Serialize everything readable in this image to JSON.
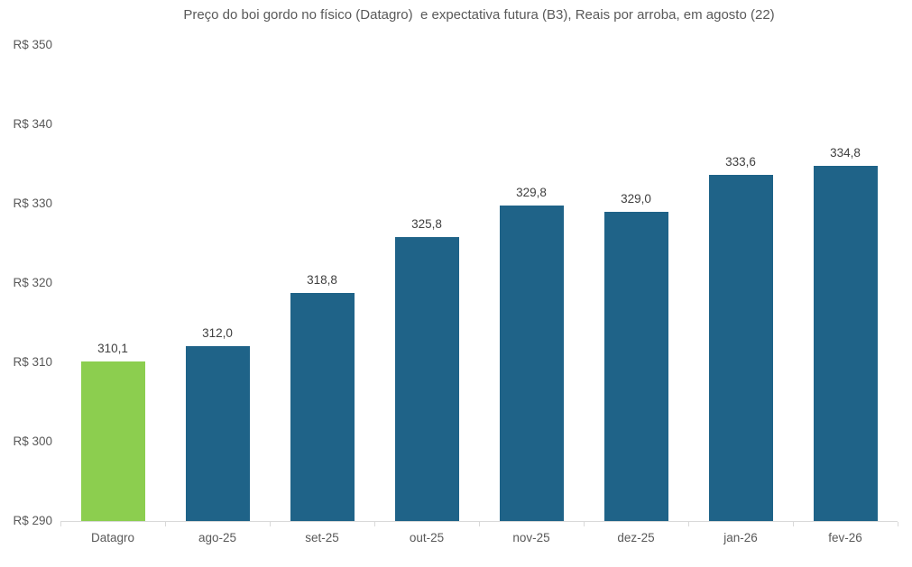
{
  "chart_data": {
    "type": "bar",
    "title": "Preço do boi gordo no físico (Datagro)  e expectativa futura (B3), Reais por arroba, em agosto (22)",
    "categories": [
      "Datagro",
      "ago-25",
      "set-25",
      "out-25",
      "nov-25",
      "dez-25",
      "jan-26",
      "fev-26"
    ],
    "values": [
      310.1,
      312.0,
      318.8,
      325.8,
      329.8,
      329.0,
      333.6,
      334.8
    ],
    "value_labels": [
      "310,1",
      "312,0",
      "318,8",
      "325,8",
      "329,8",
      "329,0",
      "333,6",
      "334,8"
    ],
    "ylim": [
      290,
      350
    ],
    "ytick_values": [
      290,
      300,
      310,
      320,
      330,
      340,
      350
    ],
    "ytick_labels": [
      "R$ 290",
      "R$ 300",
      "R$ 310",
      "R$ 320",
      "R$ 330",
      "R$ 340",
      "R$ 350"
    ],
    "xlabel": "",
    "ylabel": "",
    "grid": false,
    "legend_position": "none",
    "bar_colors": [
      "#8CCE4F",
      "#1F6388",
      "#1F6388",
      "#1F6388",
      "#1F6388",
      "#1F6388",
      "#1F6388",
      "#1F6388"
    ],
    "highlight_color": "#8CCE4F",
    "series_color": "#1F6388",
    "axis_color": "#D9D9D9",
    "tick_label_color": "#595959",
    "data_label_color": "#404040",
    "title_color": "#595959"
  }
}
